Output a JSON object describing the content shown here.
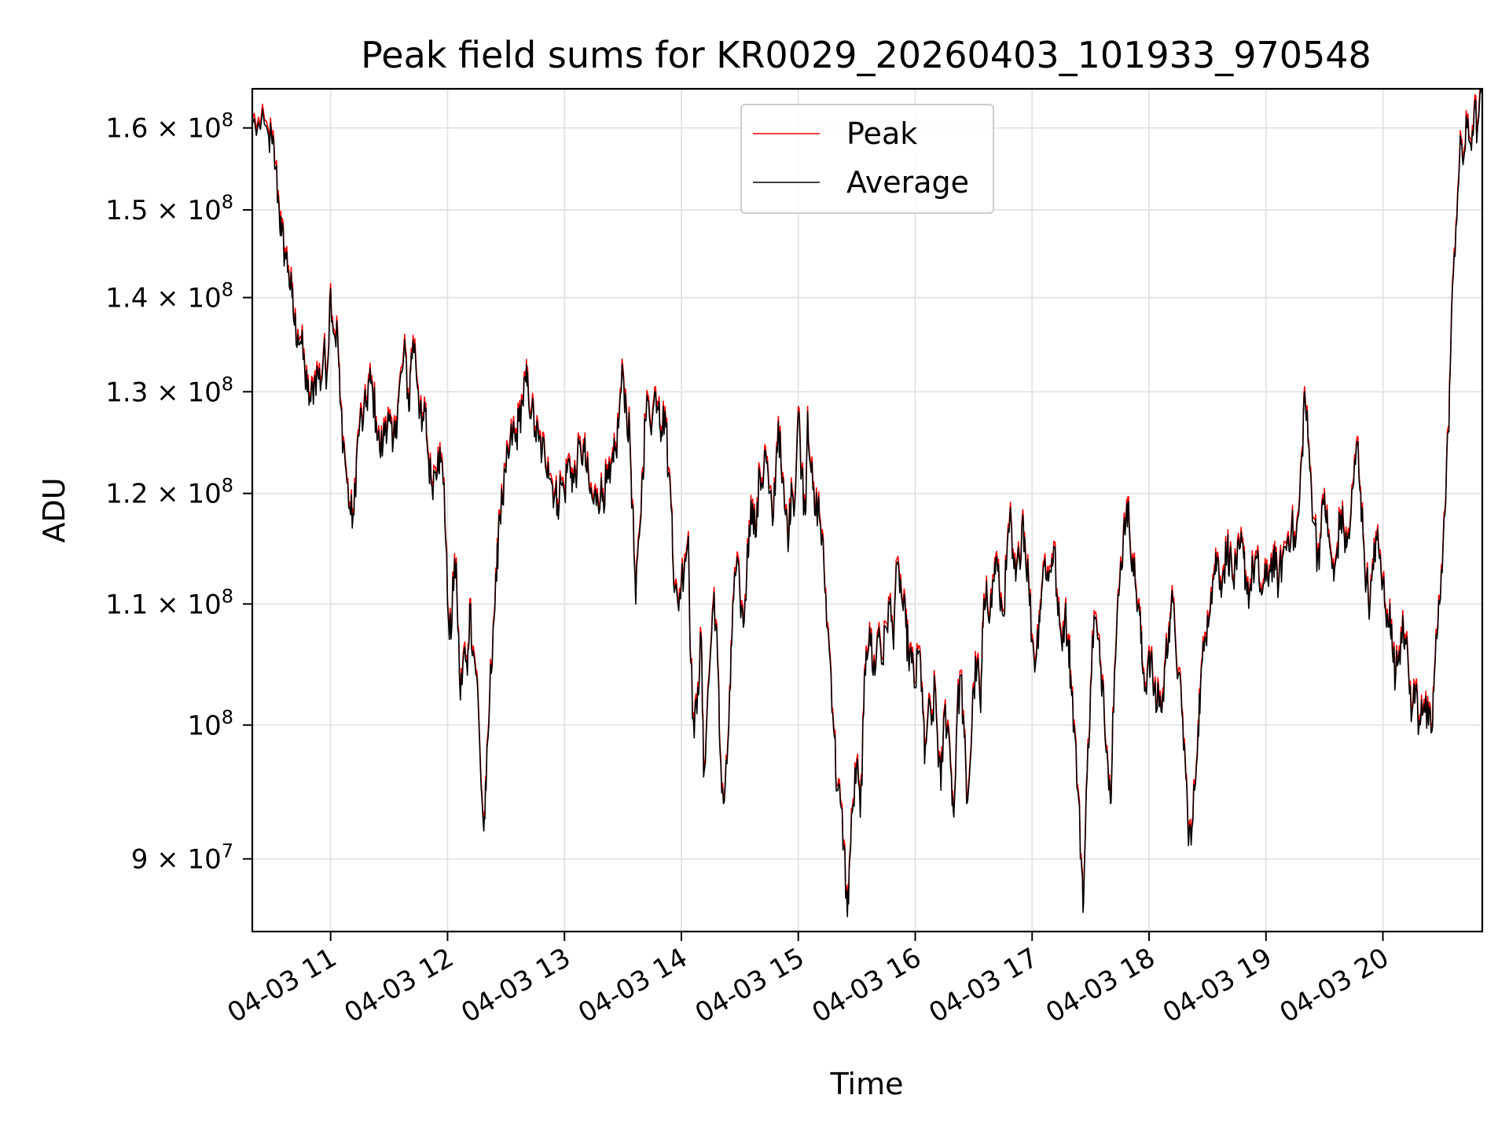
{
  "chart_data": {
    "type": "line",
    "title": "Peak field sums for KR0029_20260403_101933_970548",
    "xlabel": "Time",
    "ylabel": "ADU",
    "y_scale": "log",
    "ylim": [
      85000000,
      165000000
    ],
    "xlim": [
      10.33,
      20.85
    ],
    "grid": true,
    "legend_position": "top-center",
    "x_ticks": [
      {
        "value": 11,
        "label": "04-03 11"
      },
      {
        "value": 12,
        "label": "04-03 12"
      },
      {
        "value": 13,
        "label": "04-03 13"
      },
      {
        "value": 14,
        "label": "04-03 14"
      },
      {
        "value": 15,
        "label": "04-03 15"
      },
      {
        "value": 16,
        "label": "04-03 16"
      },
      {
        "value": 17,
        "label": "04-03 17"
      },
      {
        "value": 18,
        "label": "04-03 18"
      },
      {
        "value": 19,
        "label": "04-03 19"
      },
      {
        "value": 20,
        "label": "04-03 20"
      }
    ],
    "y_ticks": [
      {
        "value": 90000000,
        "mantissa": "9",
        "exp": "7",
        "label": "9 × 10^7"
      },
      {
        "value": 100000000,
        "mantissa": "",
        "exp": "8",
        "label": "10^8"
      },
      {
        "value": 110000000,
        "mantissa": "1.1",
        "exp": "8",
        "label": "1.1 × 10^8"
      },
      {
        "value": 120000000,
        "mantissa": "1.2",
        "exp": "8",
        "label": "1.2 × 10^8"
      },
      {
        "value": 130000000,
        "mantissa": "1.3",
        "exp": "8",
        "label": "1.3 × 10^8"
      },
      {
        "value": 140000000,
        "mantissa": "1.4",
        "exp": "8",
        "label": "1.4 × 10^8"
      },
      {
        "value": 150000000,
        "mantissa": "1.5",
        "exp": "8",
        "label": "1.5 × 10^8"
      },
      {
        "value": 160000000,
        "mantissa": "1.6",
        "exp": "8",
        "label": "1.6 × 10^8"
      }
    ],
    "series": [
      {
        "name": "Peak",
        "color": "#ff0000",
        "offset_factor": 1.004
      },
      {
        "name": "Average",
        "color": "#000000",
        "offset_factor": 1.0
      }
    ],
    "average_points": [
      [
        10.33,
        160.5
      ],
      [
        10.4,
        159.8
      ],
      [
        10.47,
        159.0
      ],
      [
        10.5,
        158.0
      ],
      [
        10.53,
        155.0
      ],
      [
        10.56,
        150.0
      ],
      [
        10.58,
        147.0
      ],
      [
        10.61,
        145.0
      ],
      [
        10.64,
        143.0
      ],
      [
        10.67,
        140.0
      ],
      [
        10.69,
        137.0
      ],
      [
        10.72,
        136.0
      ],
      [
        10.75,
        135.0
      ],
      [
        10.78,
        132.0
      ],
      [
        10.8,
        130.0
      ],
      [
        10.83,
        129.0
      ],
      [
        10.86,
        131.0
      ],
      [
        10.89,
        132.0
      ],
      [
        10.92,
        131.0
      ],
      [
        10.94,
        134.0
      ],
      [
        10.97,
        132.0
      ],
      [
        11.0,
        141.0
      ],
      [
        11.03,
        136.0
      ],
      [
        11.06,
        136.0
      ],
      [
        11.08,
        129.0
      ],
      [
        11.11,
        125.0
      ],
      [
        11.14,
        121.0
      ],
      [
        11.17,
        118.0
      ],
      [
        11.2,
        118.0
      ],
      [
        11.22,
        123.0
      ],
      [
        11.25,
        127.0
      ],
      [
        11.28,
        127.0
      ],
      [
        11.31,
        129.0
      ],
      [
        11.33,
        131.0
      ],
      [
        11.36,
        130.0
      ],
      [
        11.39,
        127.0
      ],
      [
        11.42,
        124.0
      ],
      [
        11.45,
        125.0
      ],
      [
        11.47,
        127.0
      ],
      [
        11.5,
        127.0
      ],
      [
        11.53,
        124.0
      ],
      [
        11.56,
        127.0
      ],
      [
        11.58,
        129.0
      ],
      [
        11.61,
        132.0
      ],
      [
        11.64,
        134.0
      ],
      [
        11.67,
        128.0
      ],
      [
        11.69,
        134.0
      ],
      [
        11.72,
        135.0
      ],
      [
        11.75,
        130.0
      ],
      [
        11.78,
        126.0
      ],
      [
        11.81,
        128.0
      ],
      [
        11.83,
        124.0
      ],
      [
        11.86,
        121.0
      ],
      [
        11.89,
        122.0
      ],
      [
        11.92,
        124.0
      ],
      [
        11.94,
        123.0
      ],
      [
        11.97,
        121.0
      ],
      [
        12.0,
        110.0
      ],
      [
        12.03,
        107.0
      ],
      [
        12.06,
        114.0
      ],
      [
        12.08,
        111.0
      ],
      [
        12.11,
        102.0
      ],
      [
        12.14,
        106.0
      ],
      [
        12.17,
        104.0
      ],
      [
        12.19,
        110.0
      ],
      [
        12.22,
        106.0
      ],
      [
        12.25,
        104.0
      ],
      [
        12.28,
        97.0
      ],
      [
        12.31,
        92.0
      ],
      [
        12.33,
        95.0
      ],
      [
        12.36,
        102.0
      ],
      [
        12.39,
        108.0
      ],
      [
        12.42,
        112.0
      ],
      [
        12.44,
        118.0
      ],
      [
        12.47,
        119.0
      ],
      [
        12.5,
        122.0
      ],
      [
        12.53,
        124.0
      ],
      [
        12.56,
        126.0
      ],
      [
        12.58,
        125.0
      ],
      [
        12.61,
        127.0
      ],
      [
        12.64,
        129.0
      ],
      [
        12.67,
        131.0
      ],
      [
        12.69,
        130.0
      ],
      [
        12.72,
        128.0
      ],
      [
        12.75,
        126.0
      ],
      [
        12.78,
        125.0
      ],
      [
        12.81,
        124.0
      ],
      [
        12.83,
        124.0
      ],
      [
        12.86,
        123.0
      ],
      [
        12.89,
        121.0
      ],
      [
        12.92,
        120.0
      ],
      [
        12.94,
        119.0
      ],
      [
        12.97,
        121.0
      ],
      [
        13.0,
        120.0
      ],
      [
        13.03,
        123.0
      ],
      [
        13.06,
        122.0
      ],
      [
        13.08,
        121.0
      ],
      [
        13.11,
        123.0
      ],
      [
        13.14,
        124.0
      ],
      [
        13.17,
        124.0
      ],
      [
        13.19,
        122.0
      ],
      [
        13.22,
        120.0
      ],
      [
        13.25,
        119.0
      ],
      [
        13.28,
        120.0
      ],
      [
        13.31,
        120.0
      ],
      [
        13.33,
        120.0
      ],
      [
        13.36,
        121.0
      ],
      [
        13.39,
        121.0
      ],
      [
        13.42,
        123.0
      ],
      [
        13.44,
        124.0
      ],
      [
        13.47,
        128.0
      ],
      [
        13.5,
        132.0
      ],
      [
        13.53,
        128.0
      ],
      [
        13.56,
        125.0
      ],
      [
        13.58,
        119.0
      ],
      [
        13.61,
        110.0
      ],
      [
        13.64,
        116.0
      ],
      [
        13.67,
        122.0
      ],
      [
        13.69,
        127.0
      ],
      [
        13.72,
        129.0
      ],
      [
        13.75,
        127.0
      ],
      [
        13.78,
        130.0
      ],
      [
        13.81,
        129.0
      ],
      [
        13.83,
        126.0
      ],
      [
        13.86,
        128.0
      ],
      [
        13.89,
        122.0
      ],
      [
        13.92,
        118.0
      ],
      [
        13.94,
        111.0
      ],
      [
        13.97,
        110.0
      ],
      [
        14.0,
        112.0
      ],
      [
        14.03,
        114.0
      ],
      [
        14.06,
        116.0
      ],
      [
        14.08,
        105.0
      ],
      [
        14.11,
        99.0
      ],
      [
        14.14,
        103.0
      ],
      [
        14.17,
        107.0
      ],
      [
        14.19,
        96.0
      ],
      [
        14.22,
        101.0
      ],
      [
        14.25,
        106.0
      ],
      [
        14.28,
        111.0
      ],
      [
        14.31,
        105.0
      ],
      [
        14.33,
        98.0
      ],
      [
        14.36,
        94.0
      ],
      [
        14.39,
        97.0
      ],
      [
        14.42,
        103.0
      ],
      [
        14.44,
        110.0
      ],
      [
        14.47,
        113.0
      ],
      [
        14.5,
        111.0
      ],
      [
        14.53,
        108.0
      ],
      [
        14.56,
        113.0
      ],
      [
        14.58,
        117.0
      ],
      [
        14.61,
        119.0
      ],
      [
        14.64,
        116.0
      ],
      [
        14.67,
        122.0
      ],
      [
        14.69,
        121.0
      ],
      [
        14.72,
        124.0
      ],
      [
        14.75,
        120.0
      ],
      [
        14.78,
        117.0
      ],
      [
        14.81,
        123.0
      ],
      [
        14.83,
        127.0
      ],
      [
        14.86,
        121.0
      ],
      [
        14.89,
        118.0
      ],
      [
        14.92,
        116.0
      ],
      [
        14.94,
        121.0
      ],
      [
        14.97,
        119.0
      ],
      [
        15.0,
        128.0
      ],
      [
        15.03,
        122.0
      ],
      [
        15.06,
        118.0
      ],
      [
        15.08,
        128.0
      ],
      [
        15.11,
        122.0
      ],
      [
        15.14,
        118.0
      ],
      [
        15.17,
        119.0
      ],
      [
        15.19,
        117.0
      ],
      [
        15.22,
        113.0
      ],
      [
        15.25,
        108.0
      ],
      [
        15.28,
        104.0
      ],
      [
        15.31,
        99.0
      ],
      [
        15.33,
        95.0
      ],
      [
        15.36,
        94.0
      ],
      [
        15.39,
        91.0
      ],
      [
        15.42,
        86.0
      ],
      [
        15.44,
        90.0
      ],
      [
        15.47,
        94.0
      ],
      [
        15.5,
        97.0
      ],
      [
        15.53,
        93.0
      ],
      [
        15.56,
        101.0
      ],
      [
        15.58,
        106.0
      ],
      [
        15.61,
        108.0
      ],
      [
        15.64,
        104.0
      ],
      [
        15.67,
        106.0
      ],
      [
        15.69,
        108.0
      ],
      [
        15.72,
        105.0
      ],
      [
        15.75,
        108.0
      ],
      [
        15.78,
        110.0
      ],
      [
        15.81,
        107.0
      ],
      [
        15.83,
        111.0
      ],
      [
        15.86,
        113.0
      ],
      [
        15.89,
        110.0
      ],
      [
        15.92,
        108.0
      ],
      [
        15.94,
        106.0
      ],
      [
        15.97,
        105.0
      ],
      [
        16.0,
        103.0
      ],
      [
        16.03,
        106.0
      ],
      [
        16.06,
        103.0
      ],
      [
        16.08,
        97.0
      ],
      [
        16.11,
        101.0
      ],
      [
        16.14,
        100.0
      ],
      [
        16.17,
        103.0
      ],
      [
        16.19,
        99.0
      ],
      [
        16.22,
        95.0
      ],
      [
        16.25,
        101.0
      ],
      [
        16.28,
        100.0
      ],
      [
        16.31,
        96.0
      ],
      [
        16.33,
        93.0
      ],
      [
        16.36,
        101.0
      ],
      [
        16.39,
        104.0
      ],
      [
        16.42,
        99.0
      ],
      [
        16.44,
        94.0
      ],
      [
        16.47,
        97.0
      ],
      [
        16.5,
        103.0
      ],
      [
        16.53,
        105.0
      ],
      [
        16.56,
        101.0
      ],
      [
        16.58,
        108.0
      ],
      [
        16.61,
        112.0
      ],
      [
        16.64,
        109.0
      ],
      [
        16.67,
        112.0
      ],
      [
        16.69,
        114.0
      ],
      [
        16.72,
        111.0
      ],
      [
        16.75,
        109.0
      ],
      [
        16.78,
        113.0
      ],
      [
        16.81,
        118.0
      ],
      [
        16.83,
        114.0
      ],
      [
        16.86,
        112.0
      ],
      [
        16.89,
        114.0
      ],
      [
        16.92,
        118.0
      ],
      [
        16.94,
        115.0
      ],
      [
        16.97,
        112.0
      ],
      [
        17.0,
        107.0
      ],
      [
        17.03,
        105.0
      ],
      [
        17.06,
        109.0
      ],
      [
        17.08,
        111.0
      ],
      [
        17.11,
        114.0
      ],
      [
        17.14,
        112.0
      ],
      [
        17.17,
        114.0
      ],
      [
        17.19,
        115.0
      ],
      [
        17.22,
        109.0
      ],
      [
        17.25,
        107.0
      ],
      [
        17.28,
        109.0
      ],
      [
        17.31,
        107.0
      ],
      [
        17.33,
        104.0
      ],
      [
        17.36,
        100.0
      ],
      [
        17.39,
        95.0
      ],
      [
        17.42,
        90.0
      ],
      [
        17.44,
        87.0
      ],
      [
        17.47,
        96.0
      ],
      [
        17.5,
        103.0
      ],
      [
        17.53,
        109.0
      ],
      [
        17.56,
        107.0
      ],
      [
        17.58,
        105.0
      ],
      [
        17.61,
        103.0
      ],
      [
        17.64,
        98.0
      ],
      [
        17.67,
        94.0
      ],
      [
        17.69,
        101.0
      ],
      [
        17.72,
        107.0
      ],
      [
        17.75,
        112.0
      ],
      [
        17.78,
        116.0
      ],
      [
        17.81,
        119.0
      ],
      [
        17.83,
        117.0
      ],
      [
        17.86,
        114.0
      ],
      [
        17.89,
        111.0
      ],
      [
        17.92,
        109.0
      ],
      [
        17.94,
        105.0
      ],
      [
        17.97,
        103.0
      ],
      [
        18.0,
        106.0
      ],
      [
        18.03,
        104.0
      ],
      [
        18.06,
        101.0
      ],
      [
        18.08,
        103.0
      ],
      [
        18.11,
        101.0
      ],
      [
        18.14,
        105.0
      ],
      [
        18.17,
        108.0
      ],
      [
        18.19,
        110.0
      ],
      [
        18.22,
        108.0
      ],
      [
        18.25,
        104.0
      ],
      [
        18.28,
        101.0
      ],
      [
        18.31,
        97.0
      ],
      [
        18.33,
        93.0
      ],
      [
        18.36,
        91.0
      ],
      [
        18.39,
        95.0
      ],
      [
        18.42,
        100.0
      ],
      [
        18.44,
        103.0
      ],
      [
        18.47,
        106.0
      ],
      [
        18.5,
        109.0
      ],
      [
        18.53,
        111.0
      ],
      [
        18.56,
        113.0
      ],
      [
        18.58,
        114.0
      ],
      [
        18.61,
        112.0
      ],
      [
        18.64,
        113.0
      ],
      [
        18.67,
        115.0
      ],
      [
        18.69,
        114.0
      ],
      [
        18.72,
        112.0
      ],
      [
        18.75,
        113.0
      ],
      [
        18.78,
        115.0
      ],
      [
        18.81,
        114.0
      ],
      [
        18.83,
        112.0
      ],
      [
        18.86,
        111.0
      ],
      [
        18.89,
        113.0
      ],
      [
        18.92,
        114.0
      ],
      [
        18.94,
        112.0
      ],
      [
        18.97,
        111.0
      ],
      [
        19.0,
        112.0
      ],
      [
        19.03,
        113.0
      ],
      [
        19.06,
        114.0
      ],
      [
        19.08,
        113.0
      ],
      [
        19.11,
        112.0
      ],
      [
        19.14,
        114.0
      ],
      [
        19.17,
        115.0
      ],
      [
        19.19,
        116.0
      ],
      [
        19.22,
        117.0
      ],
      [
        19.25,
        115.0
      ],
      [
        19.28,
        118.0
      ],
      [
        19.31,
        124.0
      ],
      [
        19.33,
        130.0
      ],
      [
        19.36,
        125.0
      ],
      [
        19.39,
        120.0
      ],
      [
        19.42,
        117.0
      ],
      [
        19.44,
        114.0
      ],
      [
        19.47,
        116.0
      ],
      [
        19.5,
        120.0
      ],
      [
        19.53,
        116.0
      ],
      [
        19.56,
        114.0
      ],
      [
        19.58,
        112.0
      ],
      [
        19.61,
        115.0
      ],
      [
        19.64,
        118.0
      ],
      [
        19.67,
        116.0
      ],
      [
        19.69,
        115.0
      ],
      [
        19.72,
        117.0
      ],
      [
        19.75,
        121.0
      ],
      [
        19.78,
        125.0
      ],
      [
        19.81,
        120.0
      ],
      [
        19.83,
        116.0
      ],
      [
        19.86,
        112.0
      ],
      [
        19.89,
        110.0
      ],
      [
        19.92,
        113.0
      ],
      [
        19.94,
        116.0
      ],
      [
        19.97,
        114.0
      ],
      [
        20.0,
        112.0
      ],
      [
        20.03,
        108.0
      ],
      [
        20.06,
        110.0
      ],
      [
        20.08,
        106.0
      ],
      [
        20.11,
        104.0
      ],
      [
        20.14,
        106.0
      ],
      [
        20.17,
        109.0
      ],
      [
        20.19,
        107.0
      ],
      [
        20.22,
        104.0
      ],
      [
        20.25,
        101.0
      ],
      [
        20.28,
        103.0
      ],
      [
        20.31,
        100.0
      ],
      [
        20.33,
        102.0
      ],
      [
        20.36,
        101.0
      ],
      [
        20.39,
        100.0
      ],
      [
        20.42,
        99.5
      ],
      [
        20.44,
        104.0
      ],
      [
        20.47,
        108.0
      ],
      [
        20.5,
        113.0
      ],
      [
        20.53,
        118.0
      ],
      [
        20.56,
        126.0
      ],
      [
        20.58,
        134.0
      ],
      [
        20.61,
        145.0
      ],
      [
        20.64,
        152.0
      ],
      [
        20.67,
        158.0
      ],
      [
        20.69,
        156.0
      ],
      [
        20.72,
        160.0
      ],
      [
        20.75,
        158.0
      ],
      [
        20.78,
        162.0
      ],
      [
        20.81,
        160.0
      ],
      [
        20.85,
        164.0
      ]
    ]
  }
}
